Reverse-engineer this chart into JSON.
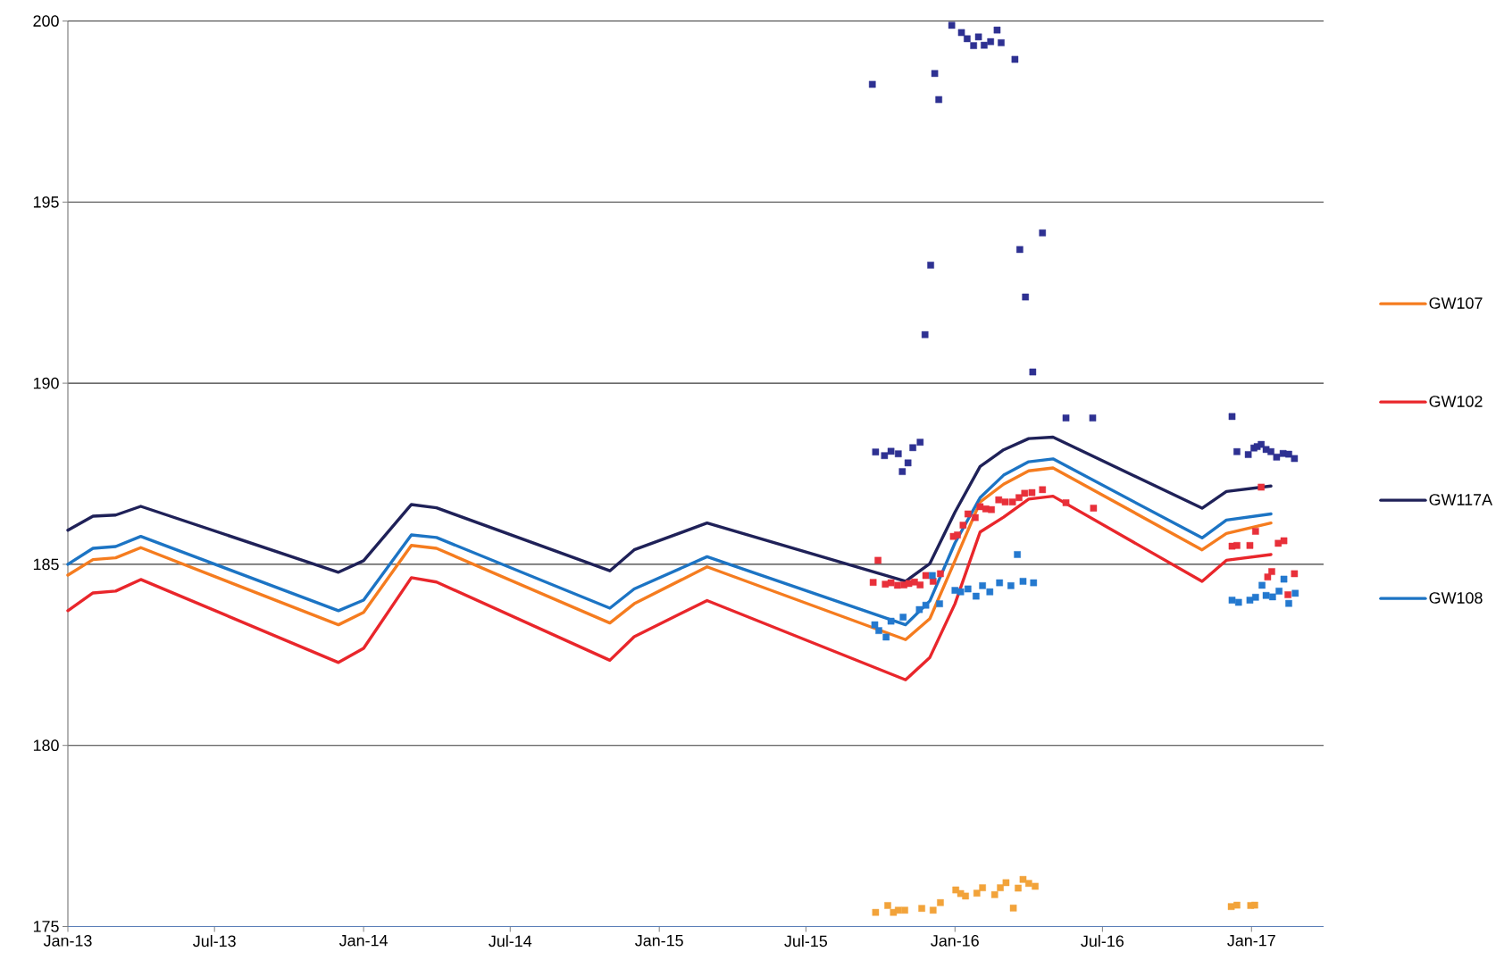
{
  "chart_data": {
    "type": "line",
    "x": [
      "2013-01-01",
      "2013-02-01",
      "2013-03-01",
      "2013-04-01",
      "2013-12-01",
      "2014-01-01",
      "2014-03-01",
      "2014-04-01",
      "2014-11-01",
      "2014-12-01",
      "2015-03-01",
      "2015-11-01",
      "2015-12-01",
      "2016-01-01",
      "2016-02-01",
      "2016-03-01",
      "2016-04-01",
      "2016-05-01",
      "2016-11-01",
      "2016-12-01",
      "2017-01-25"
    ],
    "series": [
      {
        "name": "GW107",
        "color": "#f57c1f",
        "values": [
          184.7,
          185.13,
          185.18,
          185.46,
          183.33,
          183.67,
          185.52,
          185.44,
          183.38,
          183.91,
          184.93,
          182.92,
          183.5,
          185.1,
          186.72,
          187.21,
          187.58,
          187.66,
          185.4,
          185.85,
          186.14
        ]
      },
      {
        "name": "GW102",
        "color": "#e9262b",
        "values": [
          183.72,
          184.21,
          184.26,
          184.58,
          182.29,
          182.68,
          184.63,
          184.51,
          182.35,
          183.0,
          184.0,
          181.81,
          182.43,
          183.91,
          185.89,
          186.3,
          186.8,
          186.88,
          184.53,
          185.11,
          185.27
        ]
      },
      {
        "name": "GW117A",
        "color": "#1f2158",
        "values": [
          185.94,
          186.33,
          186.36,
          186.6,
          184.78,
          185.1,
          186.65,
          186.56,
          184.82,
          185.4,
          186.14,
          184.53,
          185.02,
          186.44,
          187.7,
          188.16,
          188.47,
          188.51,
          186.55,
          187.01,
          187.16
        ]
      },
      {
        "name": "GW108",
        "color": "#1c74c4",
        "values": [
          185.0,
          185.44,
          185.49,
          185.77,
          183.72,
          184.01,
          185.81,
          185.74,
          183.79,
          184.32,
          185.21,
          183.33,
          183.99,
          185.59,
          186.84,
          187.46,
          187.83,
          187.91,
          185.73,
          186.22,
          186.39
        ]
      },
      {
        "type": "scatter",
        "marker": "square",
        "color": "#2e3192",
        "x": [
          "2015-09-21",
          "2015-09-25",
          "2015-10-06",
          "2015-10-14",
          "2015-10-23",
          "2015-10-28",
          "2015-11-04",
          "2015-11-10",
          "2015-11-19",
          "2015-11-25",
          "2015-12-02",
          "2015-12-07",
          "2015-12-12",
          "2015-12-28",
          "2016-01-09",
          "2016-01-16",
          "2016-01-24",
          "2016-01-30",
          "2016-02-06",
          "2016-02-14",
          "2016-02-22",
          "2016-02-27",
          "2016-03-15",
          "2016-03-21",
          "2016-03-28",
          "2016-04-06",
          "2016-04-18",
          "2016-05-17",
          "2016-06-19",
          "2016-12-08",
          "2016-12-14",
          "2016-12-28",
          "2017-01-04",
          "2017-01-08",
          "2017-01-13",
          "2017-01-19",
          "2017-01-25",
          "2017-02-01",
          "2017-02-09",
          "2017-02-16",
          "2017-02-23"
        ],
        "values": [
          198.25,
          188.1,
          188.0,
          188.12,
          188.05,
          187.56,
          187.8,
          188.22,
          188.37,
          191.34,
          193.26,
          198.55,
          197.83,
          199.88,
          199.68,
          199.51,
          199.32,
          199.56,
          199.33,
          199.43,
          199.75,
          199.4,
          198.94,
          193.69,
          192.38,
          190.31,
          194.15,
          189.04,
          189.04,
          189.08,
          188.11,
          188.03,
          188.21,
          188.25,
          188.31,
          188.17,
          188.11,
          187.96,
          188.06,
          188.04,
          187.92
        ]
      },
      {
        "type": "scatter",
        "marker": "square",
        "color": "#e8303a",
        "x": [
          "2015-09-22",
          "2015-09-28",
          "2015-10-07",
          "2015-10-14",
          "2015-10-22",
          "2015-10-30",
          "2015-11-05",
          "2015-11-12",
          "2015-11-19",
          "2015-11-26",
          "2015-12-05",
          "2015-12-14",
          "2015-12-30",
          "2016-01-04",
          "2016-01-11",
          "2016-01-17",
          "2016-01-26",
          "2016-02-01",
          "2016-02-08",
          "2016-02-15",
          "2016-02-24",
          "2016-03-03",
          "2016-03-12",
          "2016-03-20",
          "2016-03-27",
          "2016-04-05",
          "2016-04-18",
          "2016-05-17",
          "2016-06-20",
          "2016-12-08",
          "2016-12-14",
          "2016-12-30",
          "2017-01-06",
          "2017-01-13",
          "2017-01-21",
          "2017-01-26",
          "2017-02-03",
          "2017-02-10",
          "2017-02-15",
          "2017-02-23"
        ],
        "values": [
          184.5,
          185.11,
          184.45,
          184.49,
          184.42,
          184.43,
          184.47,
          184.51,
          184.43,
          184.69,
          184.53,
          184.74,
          185.77,
          185.81,
          186.08,
          186.39,
          186.29,
          186.59,
          186.53,
          186.51,
          186.78,
          186.72,
          186.72,
          186.84,
          186.96,
          186.98,
          187.06,
          186.7,
          186.55,
          185.5,
          185.52,
          185.52,
          185.91,
          187.13,
          184.65,
          184.8,
          185.58,
          185.65,
          184.16,
          184.74
        ]
      },
      {
        "type": "scatter",
        "marker": "square",
        "color": "#2479cf",
        "x": [
          "2015-09-24",
          "2015-09-29",
          "2015-10-08",
          "2015-10-14",
          "2015-10-29",
          "2015-11-18",
          "2015-11-26",
          "2015-12-04",
          "2015-12-13",
          "2016-01-01",
          "2016-01-08",
          "2016-01-17",
          "2016-01-27",
          "2016-02-04",
          "2016-02-13",
          "2016-02-25",
          "2016-03-10",
          "2016-03-18",
          "2016-03-25",
          "2016-04-07",
          "2016-12-08",
          "2016-12-16",
          "2016-12-30",
          "2017-01-06",
          "2017-01-14",
          "2017-01-19",
          "2017-01-27",
          "2017-02-04",
          "2017-02-10",
          "2017-02-16",
          "2017-02-24"
        ],
        "values": [
          183.33,
          183.17,
          182.99,
          183.43,
          183.54,
          183.75,
          183.87,
          184.69,
          183.91,
          184.28,
          184.24,
          184.32,
          184.12,
          184.41,
          184.24,
          184.49,
          184.41,
          185.27,
          184.53,
          184.49,
          184.01,
          183.95,
          184.01,
          184.09,
          184.42,
          184.14,
          184.1,
          184.26,
          184.59,
          183.92,
          184.2
        ]
      },
      {
        "type": "scatter",
        "marker": "square",
        "color": "#f2a33a",
        "x": [
          "2015-09-25",
          "2015-10-10",
          "2015-10-17",
          "2015-10-23",
          "2015-10-31",
          "2015-11-21",
          "2015-12-05",
          "2015-12-14",
          "2016-01-02",
          "2016-01-08",
          "2016-01-14",
          "2016-01-28",
          "2016-02-04",
          "2016-02-19",
          "2016-02-26",
          "2016-03-04",
          "2016-03-13",
          "2016-03-19",
          "2016-03-25",
          "2016-04-01",
          "2016-04-09",
          "2016-12-07",
          "2016-12-14",
          "2016-12-31",
          "2017-01-05"
        ],
        "values": [
          175.39,
          175.58,
          175.39,
          175.45,
          175.45,
          175.5,
          175.45,
          175.66,
          176.01,
          175.91,
          175.84,
          175.92,
          176.07,
          175.88,
          176.07,
          176.21,
          175.51,
          176.06,
          176.3,
          176.19,
          176.11,
          175.55,
          175.59,
          175.58,
          175.59
        ]
      }
    ],
    "xlim": [
      "2013-01-01",
      "2017-03-31"
    ],
    "xticks": [
      {
        "value": "2013-01-01",
        "label": "Jan-13"
      },
      {
        "value": "2013-07-01",
        "label": "Jul-13"
      },
      {
        "value": "2014-01-01",
        "label": "Jan-14"
      },
      {
        "value": "2014-07-01",
        "label": "Jul-14"
      },
      {
        "value": "2015-01-01",
        "label": "Jan-15"
      },
      {
        "value": "2015-07-01",
        "label": "Jul-15"
      },
      {
        "value": "2016-01-01",
        "label": "Jan-16"
      },
      {
        "value": "2016-07-01",
        "label": "Jul-16"
      },
      {
        "value": "2017-01-01",
        "label": "Jan-17"
      }
    ],
    "ylim": [
      175,
      200
    ],
    "yticks": [
      175,
      180,
      185,
      190,
      195,
      200
    ],
    "grid": "y",
    "legend": "right",
    "line_style": "solid"
  }
}
